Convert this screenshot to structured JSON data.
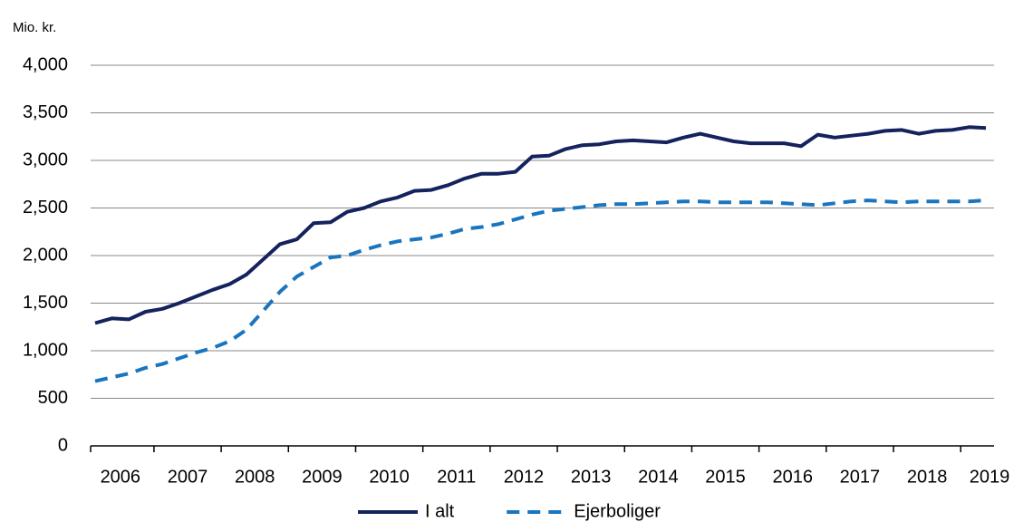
{
  "chart_data": {
    "type": "line",
    "y_axis_label": "Mio. kr.",
    "categories": [
      null,
      "2006",
      null,
      null,
      null,
      "2007",
      null,
      null,
      null,
      "2008",
      null,
      null,
      null,
      "2009",
      null,
      null,
      null,
      "2010",
      null,
      null,
      null,
      "2011",
      null,
      null,
      null,
      "2012",
      null,
      null,
      null,
      "2013",
      null,
      null,
      null,
      "2014",
      null,
      null,
      null,
      "2015",
      null,
      null,
      null,
      "2016",
      null,
      null,
      null,
      "2017",
      null,
      null,
      null,
      "2018",
      null,
      null,
      null,
      "2019"
    ],
    "series": [
      {
        "name": "I alt",
        "color": "#14225e",
        "dash": false,
        "values": [
          1290,
          1340,
          1330,
          1410,
          1440,
          1500,
          1570,
          1640,
          1700,
          1800,
          1960,
          2120,
          2170,
          2340,
          2350,
          2460,
          2500,
          2570,
          2610,
          2680,
          2690,
          2740,
          2810,
          2860,
          2860,
          2880,
          3040,
          3050,
          3120,
          3160,
          3170,
          3200,
          3210,
          3200,
          3190,
          3240,
          3280,
          3240,
          3200,
          3180,
          3180,
          3180,
          3150,
          3270,
          3240,
          3260,
          3280,
          3310,
          3320,
          3280,
          3310,
          3320,
          3350,
          3340
        ]
      },
      {
        "name": "Ejerboliger",
        "color": "#1a75bf",
        "dash": true,
        "values": [
          680,
          720,
          760,
          820,
          860,
          920,
          980,
          1030,
          1100,
          1220,
          1420,
          1620,
          1780,
          1880,
          1980,
          2000,
          2060,
          2110,
          2150,
          2170,
          2190,
          2230,
          2280,
          2300,
          2330,
          2380,
          2430,
          2470,
          2490,
          2510,
          2530,
          2540,
          2540,
          2550,
          2560,
          2570,
          2570,
          2560,
          2560,
          2560,
          2560,
          2550,
          2540,
          2530,
          2550,
          2570,
          2580,
          2570,
          2560,
          2570,
          2570,
          2570,
          2570,
          2580
        ]
      }
    ],
    "ylim": [
      0,
      4000
    ],
    "yticks": [
      0,
      500,
      {
        "value": 1000,
        "label": "1,000"
      },
      {
        "value": 1500,
        "label": "1,500"
      },
      {
        "value": 2000,
        "label": "2,000"
      },
      {
        "value": 2500,
        "label": "2,500"
      },
      {
        "value": 3000,
        "label": "3,000"
      },
      {
        "value": 3500,
        "label": "3,500"
      },
      {
        "value": 4000,
        "label": "4,000"
      }
    ],
    "grid": true,
    "legend": "bottom"
  }
}
